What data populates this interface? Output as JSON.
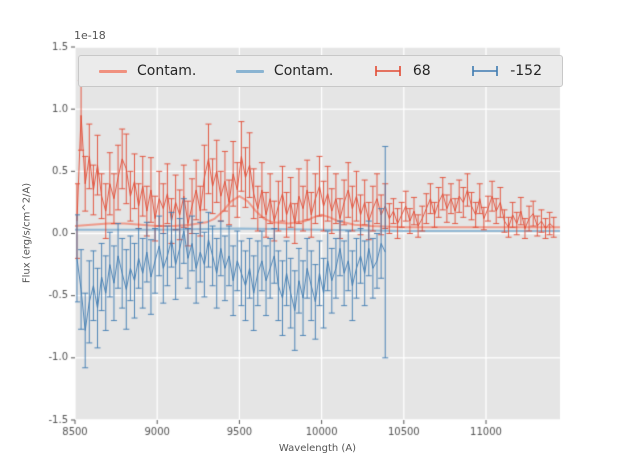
{
  "figure": {
    "background": "#ffffff",
    "axes_background": "#e5e5e5",
    "grid_color": "#ffffff",
    "tick_color": "#555555",
    "label_color": "#555555"
  },
  "chart_data": {
    "type": "line",
    "title": "",
    "xlabel": "Wavelength (A)",
    "ylabel": "Flux (erg/s/cm^2/A)",
    "offset_text": "1e-18",
    "xlim": [
      8500,
      11450
    ],
    "ylim": [
      -1.5,
      1.5
    ],
    "xticks": [
      8500,
      9000,
      9500,
      10000,
      10500,
      11000
    ],
    "yticks": [
      -1.5,
      -1.0,
      -0.5,
      0.0,
      0.5,
      1.0,
      1.5
    ],
    "grid": true,
    "legend_position": "top",
    "series": [
      {
        "name": "Contam.",
        "type": "line",
        "color": "#f0917f",
        "linewidth": 2,
        "x": [
          8500,
          8600,
          8700,
          8800,
          8900,
          9000,
          9100,
          9200,
          9300,
          9350,
          9400,
          9450,
          9500,
          9550,
          9600,
          9650,
          9700,
          9800,
          9900,
          9950,
          10000,
          10050,
          10100,
          10200,
          10300,
          10500,
          10800,
          11100,
          11450
        ],
        "y": [
          0.06,
          0.07,
          0.08,
          0.08,
          0.07,
          0.06,
          0.06,
          0.07,
          0.09,
          0.12,
          0.18,
          0.26,
          0.3,
          0.26,
          0.18,
          0.12,
          0.09,
          0.08,
          0.1,
          0.13,
          0.15,
          0.13,
          0.1,
          0.07,
          0.06,
          0.05,
          0.05,
          0.05,
          0.05
        ]
      },
      {
        "name": "Contam.",
        "type": "line",
        "color": "#8ab4d2",
        "linewidth": 2,
        "x": [
          8500,
          9000,
          9500,
          10000,
          10500,
          11450
        ],
        "y": [
          0.03,
          0.03,
          0.04,
          0.03,
          0.02,
          0.02
        ]
      },
      {
        "name": "68",
        "type": "errorbar",
        "color": "#e24a33",
        "x_start": 8512,
        "x_step": 25,
        "y": [
          0.1,
          0.95,
          0.4,
          0.62,
          0.35,
          0.55,
          0.3,
          0.18,
          0.4,
          0.28,
          0.45,
          0.6,
          0.52,
          0.3,
          0.42,
          0.22,
          0.38,
          0.18,
          0.35,
          0.12,
          0.28,
          0.2,
          0.32,
          0.1,
          0.25,
          0.15,
          0.3,
          0.08,
          0.22,
          0.35,
          0.18,
          0.45,
          0.6,
          0.38,
          0.5,
          0.3,
          0.42,
          0.25,
          0.48,
          0.35,
          0.62,
          0.45,
          0.55,
          0.32,
          0.2,
          0.35,
          0.15,
          0.28,
          0.1,
          0.22,
          0.32,
          0.15,
          0.25,
          0.08,
          0.3,
          0.2,
          0.35,
          0.15,
          0.28,
          0.38,
          0.22,
          0.32,
          0.18,
          0.28,
          0.12,
          0.25,
          0.35,
          0.2,
          0.3,
          0.15,
          0.25,
          0.1,
          0.2,
          0.28,
          0.15,
          0.22,
          0.12,
          0.18,
          0.08,
          0.15,
          0.22,
          0.1,
          0.18,
          0.06,
          0.12,
          0.2,
          0.28,
          0.15,
          0.25,
          0.32,
          0.2,
          0.28,
          0.18,
          0.3,
          0.25,
          0.35,
          0.22,
          0.15,
          0.28,
          0.12,
          0.2,
          0.3,
          0.18,
          0.25,
          0.1,
          0.05,
          0.15,
          0.08,
          0.18,
          0.04,
          0.12,
          0.16,
          0.06,
          0.1,
          0.04,
          0.08,
          0.05
        ],
        "yerr": [
          0.3,
          0.28,
          0.22,
          0.26,
          0.2,
          0.24,
          0.18,
          0.22,
          0.25,
          0.2,
          0.26,
          0.24,
          0.28,
          0.2,
          0.22,
          0.18,
          0.24,
          0.2,
          0.26,
          0.18,
          0.22,
          0.2,
          0.24,
          0.18,
          0.22,
          0.2,
          0.25,
          0.18,
          0.22,
          0.24,
          0.2,
          0.26,
          0.28,
          0.22,
          0.25,
          0.2,
          0.24,
          0.18,
          0.26,
          0.22,
          0.28,
          0.24,
          0.26,
          0.2,
          0.18,
          0.22,
          0.18,
          0.2,
          0.16,
          0.2,
          0.22,
          0.18,
          0.2,
          0.16,
          0.22,
          0.18,
          0.24,
          0.18,
          0.2,
          0.24,
          0.2,
          0.22,
          0.18,
          0.2,
          0.16,
          0.18,
          0.22,
          0.18,
          0.2,
          0.16,
          0.18,
          0.15,
          0.18,
          0.2,
          0.16,
          0.18,
          0.12,
          0.1,
          0.12,
          0.1,
          0.12,
          0.1,
          0.11,
          0.09,
          0.1,
          0.12,
          0.12,
          0.1,
          0.12,
          0.13,
          0.11,
          0.12,
          0.1,
          0.13,
          0.12,
          0.13,
          0.11,
          0.1,
          0.12,
          0.09,
          0.1,
          0.12,
          0.1,
          0.12,
          0.09,
          0.08,
          0.1,
          0.09,
          0.11,
          0.08,
          0.1,
          0.1,
          0.08,
          0.09,
          0.08,
          0.09,
          0.08
        ]
      },
      {
        "name": "-152",
        "type": "errorbar",
        "color": "#3e7bb1",
        "x_start": 8512,
        "x_step": 25,
        "y": [
          -0.2,
          -0.45,
          -0.78,
          -0.55,
          -0.42,
          -0.6,
          -0.35,
          -0.48,
          -0.25,
          -0.4,
          -0.18,
          -0.32,
          -0.45,
          -0.28,
          -0.38,
          -0.2,
          -0.32,
          -0.15,
          -0.35,
          -0.22,
          -0.1,
          -0.28,
          -0.18,
          -0.05,
          -0.25,
          -0.12,
          0.02,
          -0.2,
          -0.08,
          -0.28,
          -0.15,
          -0.25,
          -0.05,
          -0.18,
          -0.32,
          -0.12,
          -0.28,
          -0.18,
          -0.38,
          -0.22,
          -0.32,
          -0.42,
          -0.28,
          -0.48,
          -0.32,
          -0.22,
          -0.38,
          -0.28,
          -0.18,
          -0.42,
          -0.52,
          -0.32,
          -0.48,
          -0.62,
          -0.38,
          -0.52,
          -0.28,
          -0.42,
          -0.55,
          -0.32,
          -0.48,
          -0.22,
          -0.38,
          -0.28,
          -0.12,
          -0.32,
          -0.22,
          -0.42,
          -0.28,
          -0.18,
          -0.32,
          -0.12,
          -0.28,
          -0.22,
          -0.08,
          -0.15
        ],
        "yerr": [
          0.35,
          0.32,
          0.3,
          0.33,
          0.28,
          0.32,
          0.27,
          0.3,
          0.26,
          0.3,
          0.26,
          0.28,
          0.32,
          0.26,
          0.3,
          0.24,
          0.28,
          0.24,
          0.3,
          0.26,
          0.24,
          0.28,
          0.24,
          0.22,
          0.28,
          0.24,
          0.26,
          0.24,
          0.22,
          0.28,
          0.24,
          0.26,
          0.22,
          0.24,
          0.28,
          0.22,
          0.26,
          0.24,
          0.28,
          0.24,
          0.26,
          0.28,
          0.24,
          0.3,
          0.26,
          0.24,
          0.28,
          0.24,
          0.22,
          0.28,
          0.3,
          0.26,
          0.28,
          0.32,
          0.26,
          0.3,
          0.24,
          0.28,
          0.3,
          0.26,
          0.28,
          0.24,
          0.26,
          0.24,
          0.22,
          0.26,
          0.24,
          0.28,
          0.24,
          0.22,
          0.26,
          0.22,
          0.24,
          0.22,
          0.28,
          0.85
        ]
      }
    ]
  }
}
